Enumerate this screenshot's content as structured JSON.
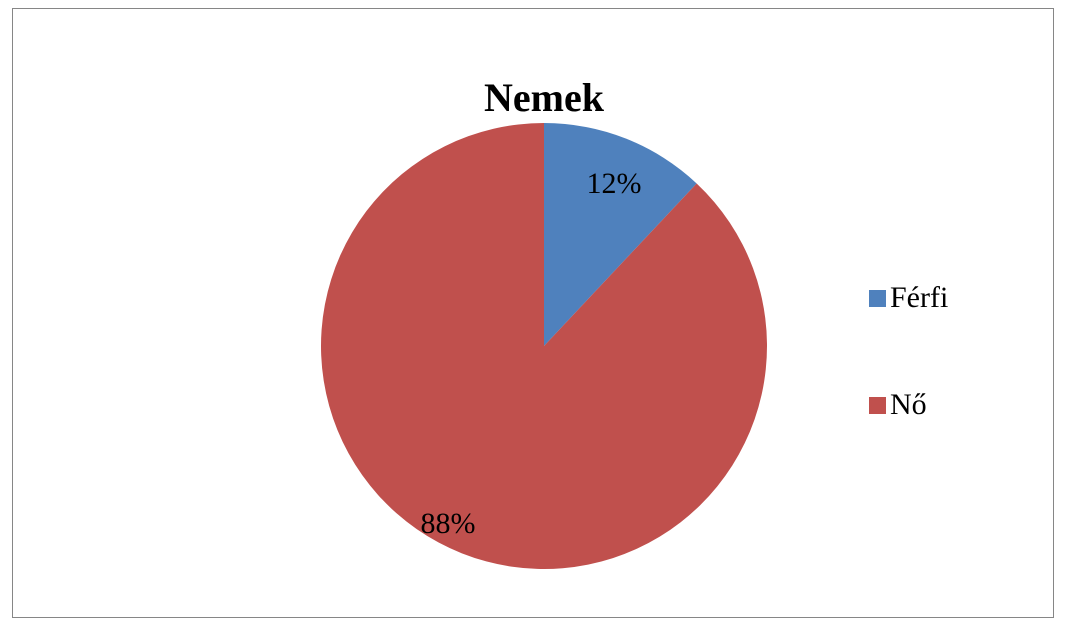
{
  "chart_data": {
    "type": "pie",
    "title": "Nemek",
    "categories": [
      "Férfi",
      "Nő"
    ],
    "values": [
      12,
      88
    ],
    "data_labels": [
      "12%",
      "88%"
    ],
    "colors": [
      "#4F81BD",
      "#C0504D"
    ],
    "legend_position": "right",
    "legend": [
      "Férfi",
      "Nő"
    ]
  }
}
